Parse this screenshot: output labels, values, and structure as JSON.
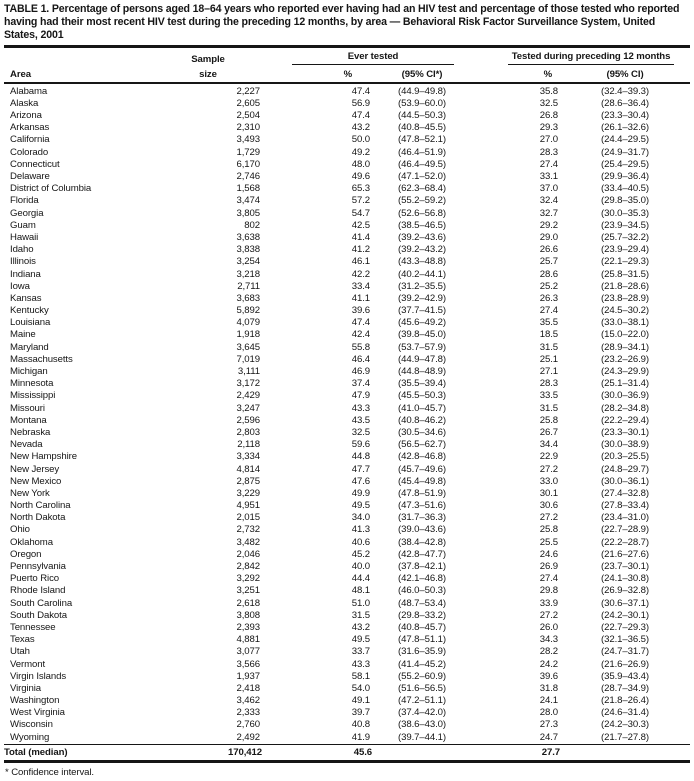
{
  "title": "TABLE 1. Percentage of persons aged 18–64 years who reported ever having had an HIV test and percentage of those tested who reported having had their most recent HIV test during the preceding 12 months, by area — Behavioral Risk Factor Surveillance System, United States, 2001",
  "footnote": "* Confidence interval.",
  "table": {
    "columns": {
      "area": "Area",
      "sample_size": [
        "Sample",
        "size"
      ],
      "ever_tested": {
        "group": "Ever tested",
        "pct": "%",
        "ci": "(95% CI*)"
      },
      "tested_12mo": {
        "group": "Tested during preceding 12 months",
        "pct": "%",
        "ci": "(95% CI)"
      }
    },
    "rows": [
      {
        "area": "Alabama",
        "sample": "2,227",
        "ever_pct": "47.4",
        "ever_ci": "(44.9–49.8)",
        "recent_pct": "35.8",
        "recent_ci": "(32.4–39.3)"
      },
      {
        "area": "Alaska",
        "sample": "2,605",
        "ever_pct": "56.9",
        "ever_ci": "(53.9–60.0)",
        "recent_pct": "32.5",
        "recent_ci": "(28.6–36.4)"
      },
      {
        "area": "Arizona",
        "sample": "2,504",
        "ever_pct": "47.4",
        "ever_ci": "(44.5–50.3)",
        "recent_pct": "26.8",
        "recent_ci": "(23.3–30.4)"
      },
      {
        "area": "Arkansas",
        "sample": "2,310",
        "ever_pct": "43.2",
        "ever_ci": "(40.8–45.5)",
        "recent_pct": "29.3",
        "recent_ci": "(26.1–32.6)"
      },
      {
        "area": "California",
        "sample": "3,493",
        "ever_pct": "50.0",
        "ever_ci": "(47.8–52.1)",
        "recent_pct": "27.0",
        "recent_ci": "(24.4–29.5)"
      },
      {
        "area": "Colorado",
        "sample": "1,729",
        "ever_pct": "49.2",
        "ever_ci": "(46.4–51.9)",
        "recent_pct": "28.3",
        "recent_ci": "(24.9–31.7)"
      },
      {
        "area": "Connecticut",
        "sample": "6,170",
        "ever_pct": "48.0",
        "ever_ci": "(46.4–49.5)",
        "recent_pct": "27.4",
        "recent_ci": "(25.4–29.5)"
      },
      {
        "area": "Delaware",
        "sample": "2,746",
        "ever_pct": "49.6",
        "ever_ci": "(47.1–52.0)",
        "recent_pct": "33.1",
        "recent_ci": "(29.9–36.4)"
      },
      {
        "area": "District of Columbia",
        "sample": "1,568",
        "ever_pct": "65.3",
        "ever_ci": "(62.3–68.4)",
        "recent_pct": "37.0",
        "recent_ci": "(33.4–40.5)"
      },
      {
        "area": "Florida",
        "sample": "3,474",
        "ever_pct": "57.2",
        "ever_ci": "(55.2–59.2)",
        "recent_pct": "32.4",
        "recent_ci": "(29.8–35.0)"
      },
      {
        "area": "Georgia",
        "sample": "3,805",
        "ever_pct": "54.7",
        "ever_ci": "(52.6–56.8)",
        "recent_pct": "32.7",
        "recent_ci": "(30.0–35.3)"
      },
      {
        "area": "Guam",
        "sample": "802",
        "ever_pct": "42.5",
        "ever_ci": "(38.5–46.5)",
        "recent_pct": "29.2",
        "recent_ci": "(23.9–34.5)"
      },
      {
        "area": "Hawaii",
        "sample": "3,638",
        "ever_pct": "41.4",
        "ever_ci": "(39.2–43.6)",
        "recent_pct": "29.0",
        "recent_ci": "(25.7–32.2)"
      },
      {
        "area": "Idaho",
        "sample": "3,838",
        "ever_pct": "41.2",
        "ever_ci": "(39.2–43.2)",
        "recent_pct": "26.6",
        "recent_ci": "(23.9–29.4)"
      },
      {
        "area": "Illinois",
        "sample": "3,254",
        "ever_pct": "46.1",
        "ever_ci": "(43.3–48.8)",
        "recent_pct": "25.7",
        "recent_ci": "(22.1–29.3)"
      },
      {
        "area": "Indiana",
        "sample": "3,218",
        "ever_pct": "42.2",
        "ever_ci": "(40.2–44.1)",
        "recent_pct": "28.6",
        "recent_ci": "(25.8–31.5)"
      },
      {
        "area": "Iowa",
        "sample": "2,711",
        "ever_pct": "33.4",
        "ever_ci": "(31.2–35.5)",
        "recent_pct": "25.2",
        "recent_ci": "(21.8–28.6)"
      },
      {
        "area": "Kansas",
        "sample": "3,683",
        "ever_pct": "41.1",
        "ever_ci": "(39.2–42.9)",
        "recent_pct": "26.3",
        "recent_ci": "(23.8–28.9)"
      },
      {
        "area": "Kentucky",
        "sample": "5,892",
        "ever_pct": "39.6",
        "ever_ci": "(37.7–41.5)",
        "recent_pct": "27.4",
        "recent_ci": "(24.5–30.2)"
      },
      {
        "area": "Louisiana",
        "sample": "4,079",
        "ever_pct": "47.4",
        "ever_ci": "(45.6–49.2)",
        "recent_pct": "35.5",
        "recent_ci": "(33.0–38.1)"
      },
      {
        "area": "Maine",
        "sample": "1,918",
        "ever_pct": "42.4",
        "ever_ci": "(39.8–45.0)",
        "recent_pct": "18.5",
        "recent_ci": "(15.0–22.0)"
      },
      {
        "area": "Maryland",
        "sample": "3,645",
        "ever_pct": "55.8",
        "ever_ci": "(53.7–57.9)",
        "recent_pct": "31.5",
        "recent_ci": "(28.9–34.1)"
      },
      {
        "area": "Massachusetts",
        "sample": "7,019",
        "ever_pct": "46.4",
        "ever_ci": "(44.9–47.8)",
        "recent_pct": "25.1",
        "recent_ci": "(23.2–26.9)"
      },
      {
        "area": "Michigan",
        "sample": "3,111",
        "ever_pct": "46.9",
        "ever_ci": "(44.8–48.9)",
        "recent_pct": "27.1",
        "recent_ci": "(24.3–29.9)"
      },
      {
        "area": "Minnesota",
        "sample": "3,172",
        "ever_pct": "37.4",
        "ever_ci": "(35.5–39.4)",
        "recent_pct": "28.3",
        "recent_ci": "(25.1–31.4)"
      },
      {
        "area": "Mississippi",
        "sample": "2,429",
        "ever_pct": "47.9",
        "ever_ci": "(45.5–50.3)",
        "recent_pct": "33.5",
        "recent_ci": "(30.0–36.9)"
      },
      {
        "area": "Missouri",
        "sample": "3,247",
        "ever_pct": "43.3",
        "ever_ci": "(41.0–45.7)",
        "recent_pct": "31.5",
        "recent_ci": "(28.2–34.8)"
      },
      {
        "area": "Montana",
        "sample": "2,596",
        "ever_pct": "43.5",
        "ever_ci": "(40.8–46.2)",
        "recent_pct": "25.8",
        "recent_ci": "(22.2–29.4)"
      },
      {
        "area": "Nebraska",
        "sample": "2,803",
        "ever_pct": "32.5",
        "ever_ci": "(30.5–34.6)",
        "recent_pct": "26.7",
        "recent_ci": "(23.3–30.1)"
      },
      {
        "area": "Nevada",
        "sample": "2,118",
        "ever_pct": "59.6",
        "ever_ci": "(56.5–62.7)",
        "recent_pct": "34.4",
        "recent_ci": "(30.0–38.9)"
      },
      {
        "area": "New Hampshire",
        "sample": "3,334",
        "ever_pct": "44.8",
        "ever_ci": "(42.8–46.8)",
        "recent_pct": "22.9",
        "recent_ci": "(20.3–25.5)"
      },
      {
        "area": "New Jersey",
        "sample": "4,814",
        "ever_pct": "47.7",
        "ever_ci": "(45.7–49.6)",
        "recent_pct": "27.2",
        "recent_ci": "(24.8–29.7)"
      },
      {
        "area": "New Mexico",
        "sample": "2,875",
        "ever_pct": "47.6",
        "ever_ci": "(45.4–49.8)",
        "recent_pct": "33.0",
        "recent_ci": "(30.0–36.1)"
      },
      {
        "area": "New York",
        "sample": "3,229",
        "ever_pct": "49.9",
        "ever_ci": "(47.8–51.9)",
        "recent_pct": "30.1",
        "recent_ci": "(27.4–32.8)"
      },
      {
        "area": "North Carolina",
        "sample": "4,951",
        "ever_pct": "49.5",
        "ever_ci": "(47.3–51.6)",
        "recent_pct": "30.6",
        "recent_ci": "(27.8–33.4)"
      },
      {
        "area": "North Dakota",
        "sample": "2,015",
        "ever_pct": "34.0",
        "ever_ci": "(31.7–36.3)",
        "recent_pct": "27.2",
        "recent_ci": "(23.4–31.0)"
      },
      {
        "area": "Ohio",
        "sample": "2,732",
        "ever_pct": "41.3",
        "ever_ci": "(39.0–43.6)",
        "recent_pct": "25.8",
        "recent_ci": "(22.7–28.9)"
      },
      {
        "area": "Oklahoma",
        "sample": "3,482",
        "ever_pct": "40.6",
        "ever_ci": "(38.4–42.8)",
        "recent_pct": "25.5",
        "recent_ci": "(22.2–28.7)"
      },
      {
        "area": "Oregon",
        "sample": "2,046",
        "ever_pct": "45.2",
        "ever_ci": "(42.8–47.7)",
        "recent_pct": "24.6",
        "recent_ci": "(21.6–27.6)"
      },
      {
        "area": "Pennsylvania",
        "sample": "2,842",
        "ever_pct": "40.0",
        "ever_ci": "(37.8–42.1)",
        "recent_pct": "26.9",
        "recent_ci": "(23.7–30.1)"
      },
      {
        "area": "Puerto Rico",
        "sample": "3,292",
        "ever_pct": "44.4",
        "ever_ci": "(42.1–46.8)",
        "recent_pct": "27.4",
        "recent_ci": "(24.1–30.8)"
      },
      {
        "area": "Rhode Island",
        "sample": "3,251",
        "ever_pct": "48.1",
        "ever_ci": "(46.0–50.3)",
        "recent_pct": "29.8",
        "recent_ci": "(26.9–32.8)"
      },
      {
        "area": "South Carolina",
        "sample": "2,618",
        "ever_pct": "51.0",
        "ever_ci": "(48.7–53.4)",
        "recent_pct": "33.9",
        "recent_ci": "(30.6–37.1)"
      },
      {
        "area": "South Dakota",
        "sample": "3,808",
        "ever_pct": "31.5",
        "ever_ci": "(29.8–33.2)",
        "recent_pct": "27.2",
        "recent_ci": "(24.2–30.1)"
      },
      {
        "area": "Tennessee",
        "sample": "2,393",
        "ever_pct": "43.2",
        "ever_ci": "(40.8–45.7)",
        "recent_pct": "26.0",
        "recent_ci": "(22.7–29.3)"
      },
      {
        "area": "Texas",
        "sample": "4,881",
        "ever_pct": "49.5",
        "ever_ci": "(47.8–51.1)",
        "recent_pct": "34.3",
        "recent_ci": "(32.1–36.5)"
      },
      {
        "area": "Utah",
        "sample": "3,077",
        "ever_pct": "33.7",
        "ever_ci": "(31.6–35.9)",
        "recent_pct": "28.2",
        "recent_ci": "(24.7–31.7)"
      },
      {
        "area": "Vermont",
        "sample": "3,566",
        "ever_pct": "43.3",
        "ever_ci": "(41.4–45.2)",
        "recent_pct": "24.2",
        "recent_ci": "(21.6–26.9)"
      },
      {
        "area": "Virgin Islands",
        "sample": "1,937",
        "ever_pct": "58.1",
        "ever_ci": "(55.2–60.9)",
        "recent_pct": "39.6",
        "recent_ci": "(35.9–43.4)"
      },
      {
        "area": "Virginia",
        "sample": "2,418",
        "ever_pct": "54.0",
        "ever_ci": "(51.6–56.5)",
        "recent_pct": "31.8",
        "recent_ci": "(28.7–34.9)"
      },
      {
        "area": "Washington",
        "sample": "3,462",
        "ever_pct": "49.1",
        "ever_ci": "(47.2–51.1)",
        "recent_pct": "24.1",
        "recent_ci": "(21.8–26.4)"
      },
      {
        "area": "West Virginia",
        "sample": "2,333",
        "ever_pct": "39.7",
        "ever_ci": "(37.4–42.0)",
        "recent_pct": "28.0",
        "recent_ci": "(24.6–31.4)"
      },
      {
        "area": "Wisconsin",
        "sample": "2,760",
        "ever_pct": "40.8",
        "ever_ci": "(38.6–43.0)",
        "recent_pct": "27.3",
        "recent_ci": "(24.2–30.3)"
      },
      {
        "area": "Wyoming",
        "sample": "2,492",
        "ever_pct": "41.9",
        "ever_ci": "(39.7–44.1)",
        "recent_pct": "24.7",
        "recent_ci": "(21.7–27.8)"
      }
    ],
    "total": {
      "area": "Total (median)",
      "sample": "170,412",
      "ever_pct": "45.6",
      "ever_ci": "",
      "recent_pct": "27.7",
      "recent_ci": ""
    }
  }
}
